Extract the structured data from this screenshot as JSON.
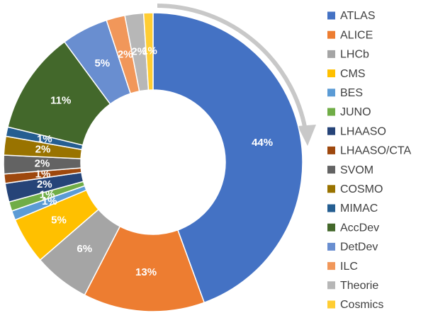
{
  "chart_data": {
    "type": "donut",
    "categories": [
      "ATLAS",
      "ALICE",
      "LHCb",
      "CMS",
      "BES",
      "JUNO",
      "LHAASO",
      "LHAASO/CTA",
      "SVOM",
      "COSMO",
      "MIMAC",
      "AccDev",
      "DetDev",
      "ILC",
      "Theorie",
      "Cosmics"
    ],
    "values": [
      44,
      13,
      6,
      5,
      1,
      1,
      2,
      1,
      2,
      2,
      1,
      11,
      5,
      2,
      2,
      1
    ],
    "value_labels": [
      "44%",
      "13%",
      "6%",
      "5%",
      "1%",
      "1%",
      "2%",
      "1%",
      "2%",
      "2%",
      "1%",
      "11%",
      "5%",
      "2%",
      "2%",
      "1%"
    ],
    "colors": [
      "#4472c4",
      "#ed7d31",
      "#a5a5a5",
      "#ffc000",
      "#5b9bd5",
      "#70ad47",
      "#264478",
      "#9e480e",
      "#636363",
      "#997300",
      "#255e91",
      "#43682b",
      "#698ed0",
      "#f1975a",
      "#b7b7b7",
      "#ffcd33"
    ],
    "legend": "right"
  }
}
